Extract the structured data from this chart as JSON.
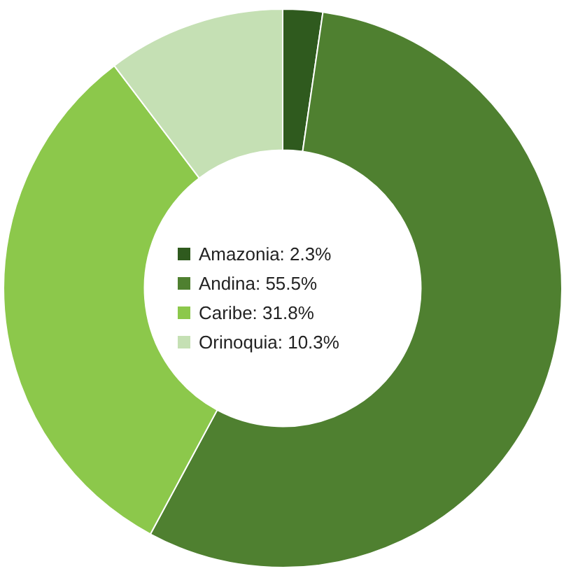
{
  "chart_data": {
    "type": "donut",
    "categories": [
      "Amazonia",
      "Andina",
      "Caribe",
      "Orinoquia"
    ],
    "values": [
      2.3,
      55.5,
      31.8,
      10.3
    ],
    "value_labels": [
      "2.3%",
      "55.5%",
      "31.8%",
      "10.3%"
    ],
    "colors": [
      "#2f5a1e",
      "#4f8030",
      "#8cc84b",
      "#c5e0b4"
    ],
    "legend": "center"
  }
}
